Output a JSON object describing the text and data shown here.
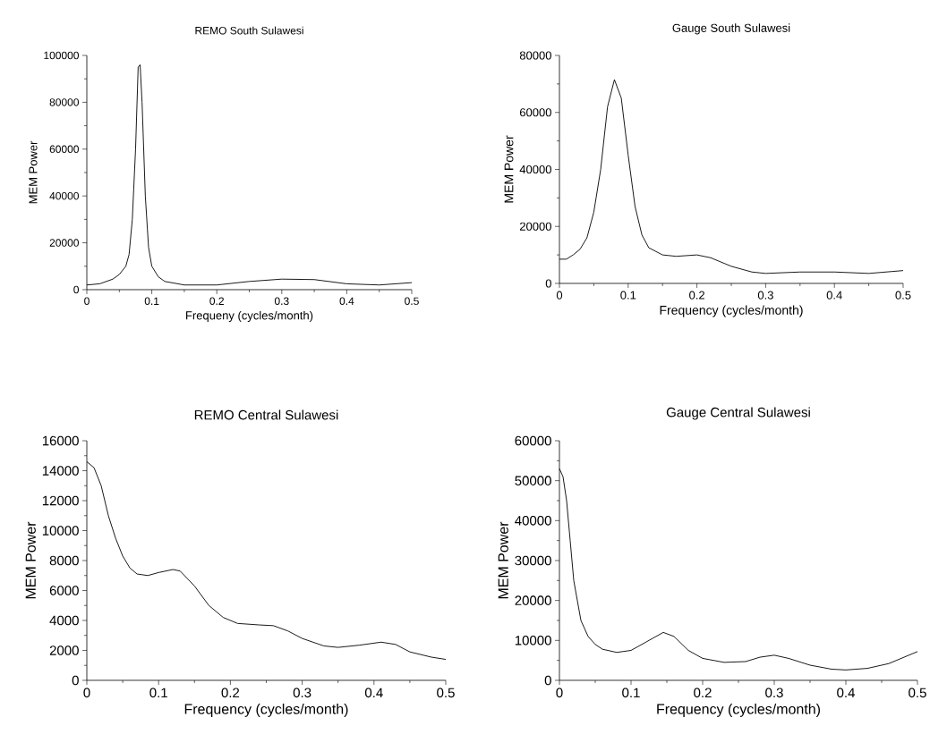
{
  "chart_data": [
    {
      "type": "line",
      "title": "REMO South Sulawesi",
      "xlabel": "Frequeny (cycles/month)",
      "ylabel": "MEM Power",
      "color": "#000000",
      "xlim": [
        0,
        0.5
      ],
      "ylim": [
        0,
        100000
      ],
      "xticks": [
        0,
        0.1,
        0.2,
        0.3,
        0.4,
        0.5
      ],
      "yticks": [
        0,
        20000,
        40000,
        60000,
        80000,
        100000
      ],
      "x": [
        0,
        0.02,
        0.04,
        0.05,
        0.06,
        0.065,
        0.07,
        0.075,
        0.079,
        0.082,
        0.085,
        0.09,
        0.095,
        0.1,
        0.11,
        0.12,
        0.15,
        0.2,
        0.25,
        0.3,
        0.35,
        0.4,
        0.45,
        0.5
      ],
      "values": [
        2000,
        2500,
        4500,
        6500,
        10000,
        15000,
        30000,
        60000,
        95000,
        96000,
        80000,
        40000,
        18000,
        10000,
        5500,
        3500,
        2000,
        2000,
        3500,
        4500,
        4300,
        2500,
        2000,
        3000
      ]
    },
    {
      "type": "line",
      "title": "Gauge South Sulawesi",
      "xlabel": "Frequency (cycles/month)",
      "ylabel": "MEM Power",
      "color": "#000000",
      "xlim": [
        0,
        0.5
      ],
      "ylim": [
        0,
        80000
      ],
      "xticks": [
        0,
        0.1,
        0.2,
        0.3,
        0.4,
        0.5
      ],
      "yticks": [
        0,
        20000,
        40000,
        60000,
        80000
      ],
      "x": [
        0,
        0.01,
        0.02,
        0.03,
        0.04,
        0.05,
        0.06,
        0.07,
        0.08,
        0.09,
        0.1,
        0.11,
        0.12,
        0.13,
        0.15,
        0.17,
        0.2,
        0.22,
        0.25,
        0.28,
        0.3,
        0.35,
        0.4,
        0.45,
        0.5
      ],
      "values": [
        8500,
        8500,
        10000,
        12000,
        16000,
        25000,
        40000,
        62000,
        71500,
        65000,
        45000,
        27000,
        17000,
        12500,
        10000,
        9500,
        10000,
        9000,
        6000,
        4000,
        3500,
        4000,
        4000,
        3500,
        4500
      ]
    },
    {
      "type": "line",
      "title": "REMO Central Sulawesi",
      "xlabel": "Frequency (cycles/month)",
      "ylabel": "MEM Power",
      "color": "#000000",
      "xlim": [
        0,
        0.5
      ],
      "ylim": [
        0,
        16000
      ],
      "xticks": [
        0,
        0.1,
        0.2,
        0.3,
        0.4,
        0.5
      ],
      "yticks": [
        0,
        2000,
        4000,
        6000,
        8000,
        10000,
        12000,
        14000,
        16000
      ],
      "x": [
        0,
        0.01,
        0.02,
        0.03,
        0.04,
        0.05,
        0.06,
        0.07,
        0.085,
        0.1,
        0.12,
        0.13,
        0.15,
        0.17,
        0.19,
        0.21,
        0.24,
        0.26,
        0.28,
        0.3,
        0.33,
        0.35,
        0.38,
        0.41,
        0.43,
        0.45,
        0.48,
        0.5
      ],
      "values": [
        14600,
        14200,
        13000,
        11000,
        9500,
        8300,
        7500,
        7100,
        7000,
        7200,
        7400,
        7300,
        6300,
        5000,
        4200,
        3800,
        3700,
        3650,
        3300,
        2800,
        2300,
        2200,
        2350,
        2550,
        2400,
        1900,
        1550,
        1400
      ]
    },
    {
      "type": "line",
      "title": "Gauge Central Sulawesi",
      "xlabel": "Frequency (cycles/month)",
      "ylabel": "MEM Power",
      "color": "#000000",
      "xlim": [
        0,
        0.5
      ],
      "ylim": [
        0,
        60000
      ],
      "xticks": [
        0,
        0.1,
        0.2,
        0.3,
        0.4,
        0.5
      ],
      "yticks": [
        0,
        10000,
        20000,
        30000,
        40000,
        50000,
        60000
      ],
      "x": [
        0,
        0.005,
        0.01,
        0.015,
        0.02,
        0.03,
        0.04,
        0.05,
        0.06,
        0.08,
        0.1,
        0.12,
        0.145,
        0.16,
        0.18,
        0.2,
        0.23,
        0.26,
        0.28,
        0.3,
        0.32,
        0.35,
        0.38,
        0.4,
        0.43,
        0.46,
        0.5
      ],
      "values": [
        53000,
        51000,
        45000,
        35000,
        25000,
        15000,
        11000,
        9000,
        7800,
        7000,
        7500,
        9500,
        12000,
        11000,
        7500,
        5500,
        4500,
        4700,
        5800,
        6300,
        5500,
        3800,
        2800,
        2600,
        3000,
        4200,
        7200
      ]
    }
  ]
}
